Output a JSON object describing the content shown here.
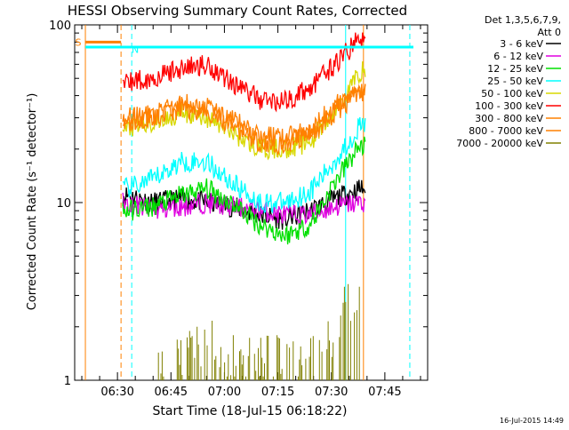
{
  "chart_data": {
    "type": "line",
    "title": "HESSI Observing Summary Count Rates, Corrected",
    "xlabel": "Start Time (18-Jul-15 06:18:22)",
    "ylabel": "Corrected Count Rate (s⁻¹ detector⁻¹)",
    "y_scale": "log",
    "ylim": [
      1,
      100
    ],
    "y_ticks": [
      "1",
      "10",
      "100"
    ],
    "xlim": [
      "06:18",
      "07:57"
    ],
    "x_ticks": [
      "06:30",
      "06:45",
      "07:00",
      "07:15",
      "07:30",
      "07:45"
    ],
    "grid": false,
    "legend_position": "right",
    "legend_header": [
      "Det 1,3,5,6,7,9,",
      "Att 0"
    ],
    "timestamp": "16-Jul-2015 14:49",
    "data_window": [
      "06:21",
      "07:40"
    ],
    "series": [
      {
        "name": "3 - 6 keV",
        "color": "#000000",
        "x": [
          "06:33",
          "06:40",
          "06:48",
          "06:55",
          "07:02",
          "07:10",
          "07:17",
          "07:24",
          "07:31",
          "07:38"
        ],
        "y": [
          11,
          10,
          10.5,
          10,
          9.5,
          8.5,
          8,
          9,
          10.5,
          12
        ]
      },
      {
        "name": "6 - 12 keV",
        "color": "#e000e0",
        "x": [
          "06:33",
          "06:40",
          "06:48",
          "06:55",
          "07:02",
          "07:10",
          "07:17",
          "07:24",
          "07:31",
          "07:38"
        ],
        "y": [
          10,
          9,
          9.5,
          10,
          9.5,
          9,
          8.5,
          8.5,
          9.5,
          10
        ]
      },
      {
        "name": "12 - 25 keV",
        "color": "#00e000",
        "x": [
          "06:33",
          "06:40",
          "06:48",
          "06:55",
          "07:02",
          "07:10",
          "07:17",
          "07:24",
          "07:31",
          "07:38"
        ],
        "y": [
          9,
          9.5,
          11,
          12,
          10,
          7.5,
          6.5,
          7.5,
          13,
          21
        ]
      },
      {
        "name": "25 - 50 keV",
        "color": "#00ffff",
        "x": [
          "06:33",
          "06:40",
          "06:48",
          "06:55",
          "07:02",
          "07:10",
          "07:17",
          "07:24",
          "07:31",
          "07:38"
        ],
        "y": [
          12,
          13.5,
          17,
          17,
          13,
          10,
          10,
          11.5,
          17,
          27
        ]
      },
      {
        "name": "50 - 100 keV",
        "color": "#d8d800",
        "x": [
          "06:33",
          "06:40",
          "06:48",
          "06:55",
          "07:02",
          "07:10",
          "07:17",
          "07:24",
          "07:31",
          "07:38"
        ],
        "y": [
          26,
          28,
          32,
          30,
          25,
          20,
          20,
          22,
          32,
          55
        ]
      },
      {
        "name": "100 - 300 keV",
        "color": "#ff0000",
        "x": [
          "06:33",
          "06:40",
          "06:48",
          "06:55",
          "07:02",
          "07:10",
          "07:17",
          "07:24",
          "07:31",
          "07:38"
        ],
        "y": [
          48,
          50,
          57,
          60,
          48,
          38,
          37,
          44,
          60,
          84
        ]
      },
      {
        "name": "300 - 800 keV",
        "color": "#ff8000",
        "x": [
          "06:33",
          "06:40",
          "06:48",
          "06:55",
          "07:02",
          "07:10",
          "07:17",
          "07:24",
          "07:31",
          "07:38"
        ],
        "y": [
          28,
          30,
          34,
          32,
          27,
          22,
          21,
          24,
          32,
          42
        ]
      },
      {
        "name": "800 - 7000 keV",
        "color": "#ff8000",
        "x": [
          "06:33",
          "06:40",
          "06:48",
          "06:55",
          "07:02",
          "07:10",
          "07:17",
          "07:24",
          "07:31",
          "07:38"
        ],
        "y": [
          30,
          31,
          36,
          35,
          29,
          24,
          23,
          26,
          35,
          43
        ]
      },
      {
        "name": "7000 - 20000 keV",
        "color": "#808000",
        "x": [
          "06:43",
          "06:47",
          "06:51",
          "06:55",
          "06:59",
          "07:28",
          "07:31",
          "07:34",
          "07:37"
        ],
        "y": [
          1.5,
          1.8,
          1.6,
          2.2,
          1.5,
          1.5,
          2.5,
          3,
          4
        ]
      },
      {
        "name": "",
        "color": "#ff8000",
        "x": [
          "06:21",
          "06:31"
        ],
        "y": [
          80,
          80
        ]
      },
      {
        "name": "",
        "color": "#00ffff",
        "x": [
          "06:21",
          "06:34",
          "07:34",
          "07:53"
        ],
        "y": [
          75,
          75,
          75,
          75
        ]
      }
    ],
    "annotations": [
      {
        "text": "S",
        "x": "06:19",
        "y": 80,
        "color": "#ff8000"
      },
      {
        "text": "N",
        "x": "06:35",
        "y": 73,
        "color": "#00ffff"
      }
    ],
    "vlines": [
      {
        "x": "06:21",
        "color": "#ff8000",
        "style": "solid"
      },
      {
        "x": "06:31",
        "color": "#ff8000",
        "style": "dashed"
      },
      {
        "x": "06:34",
        "color": "#00ffff",
        "style": "dashed"
      },
      {
        "x": "07:34",
        "color": "#00ffff",
        "style": "solid"
      },
      {
        "x": "07:39",
        "color": "#ff8000",
        "style": "solid"
      },
      {
        "x": "07:52",
        "color": "#00ffff",
        "style": "dashed"
      }
    ]
  }
}
